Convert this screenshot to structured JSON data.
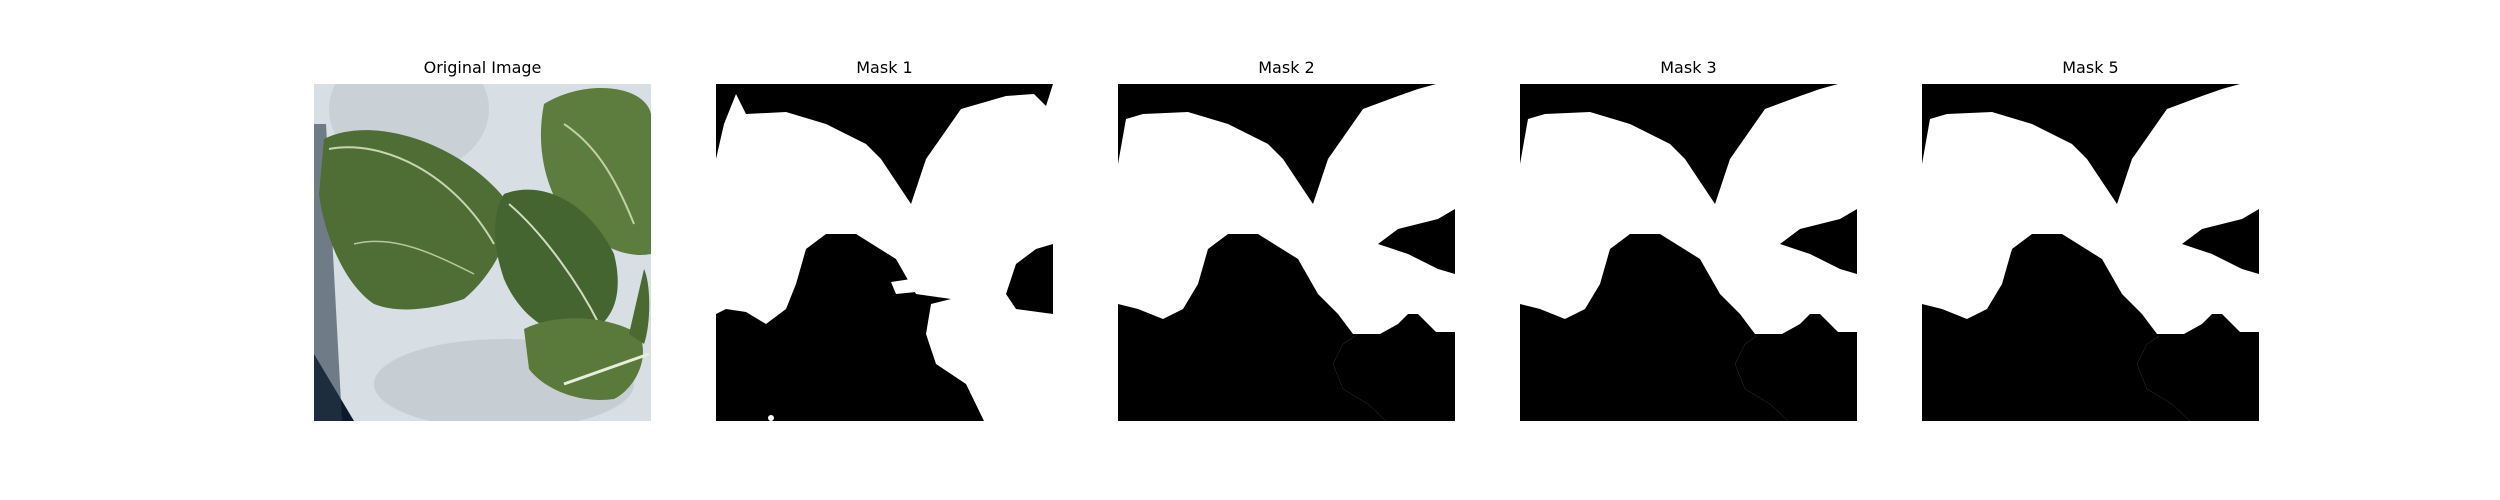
{
  "panels": [
    {
      "title": "Original Image",
      "kind": "photo"
    },
    {
      "title": "Mask 1",
      "kind": "mask"
    },
    {
      "title": "Mask 2",
      "kind": "mask"
    },
    {
      "title": "Mask 3",
      "kind": "mask"
    },
    {
      "title": "Mask 5",
      "kind": "mask"
    }
  ],
  "colors": {
    "mask_background": "#000000",
    "mask_foreground": "#ffffff",
    "leaf_dark": "#3f5a2c",
    "leaf_mid": "#6f8f4a",
    "backdrop": "#d6dde3"
  }
}
